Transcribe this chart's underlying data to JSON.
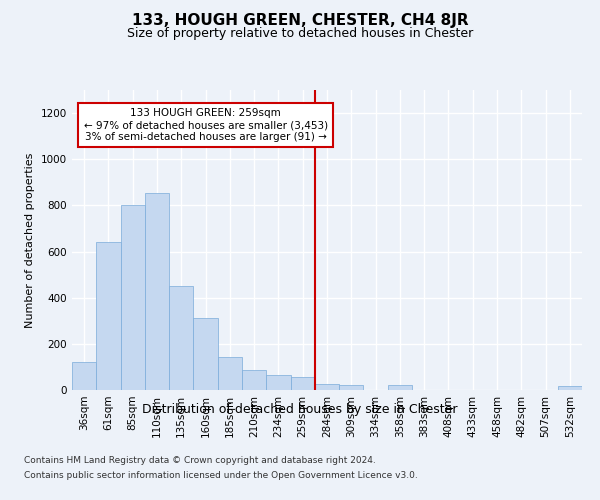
{
  "title": "133, HOUGH GREEN, CHESTER, CH4 8JR",
  "subtitle": "Size of property relative to detached houses in Chester",
  "xlabel": "Distribution of detached houses by size in Chester",
  "ylabel": "Number of detached properties",
  "footnote1": "Contains HM Land Registry data © Crown copyright and database right 2024.",
  "footnote2": "Contains public sector information licensed under the Open Government Licence v3.0.",
  "annotation_line1": "133 HOUGH GREEN: 259sqm",
  "annotation_line2": "← 97% of detached houses are smaller (3,453)",
  "annotation_line3": "3% of semi-detached houses are larger (91) →",
  "bar_color": "#c5d8f0",
  "bar_edge_color": "#7aabda",
  "redline_color": "#cc0000",
  "background_color": "#edf2f9",
  "ylim": [
    0,
    1300
  ],
  "yticks": [
    0,
    200,
    400,
    600,
    800,
    1000,
    1200
  ],
  "categories": [
    "36sqm",
    "61sqm",
    "85sqm",
    "110sqm",
    "135sqm",
    "160sqm",
    "185sqm",
    "210sqm",
    "234sqm",
    "259sqm",
    "284sqm",
    "309sqm",
    "334sqm",
    "358sqm",
    "383sqm",
    "408sqm",
    "433sqm",
    "458sqm",
    "482sqm",
    "507sqm",
    "532sqm"
  ],
  "values": [
    120,
    640,
    800,
    855,
    450,
    310,
    145,
    85,
    65,
    55,
    25,
    20,
    0,
    20,
    0,
    0,
    0,
    0,
    0,
    0,
    18
  ],
  "red_line_index": 9.5,
  "title_fontsize": 11,
  "subtitle_fontsize": 9,
  "ylabel_fontsize": 8,
  "xlabel_fontsize": 9,
  "tick_fontsize": 7.5,
  "footnote_fontsize": 6.5
}
